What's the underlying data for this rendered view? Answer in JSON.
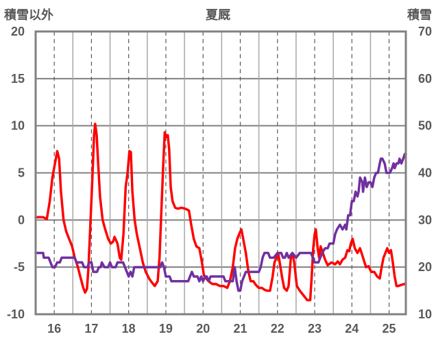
{
  "chart_data": {
    "type": "line",
    "title": "夏厩",
    "y_left_label": "積雪以外",
    "y_right_label": "積雪",
    "x_categories": [
      "16",
      "17",
      "18",
      "19",
      "20",
      "21",
      "22",
      "23",
      "24",
      "25"
    ],
    "xlim": [
      15.5,
      25.45
    ],
    "y_left_lim": [
      -10,
      20
    ],
    "y_left_ticks": [
      -10,
      -5,
      0,
      5,
      10,
      15,
      20
    ],
    "y_right_lim": [
      10,
      70
    ],
    "y_right_ticks": [
      10,
      20,
      30,
      40,
      50,
      60,
      70
    ],
    "grid": true,
    "legend": "none",
    "series": [
      {
        "axis": "left",
        "color": "#ff0000",
        "points": [
          [
            15.5,
            0.3
          ],
          [
            15.7,
            0.3
          ],
          [
            15.8,
            0.1
          ],
          [
            15.88,
            2.0
          ],
          [
            15.95,
            4.5
          ],
          [
            16.02,
            6.0
          ],
          [
            16.08,
            7.3
          ],
          [
            16.13,
            6.5
          ],
          [
            16.18,
            3.0
          ],
          [
            16.25,
            0.0
          ],
          [
            16.32,
            -1.2
          ],
          [
            16.4,
            -2.0
          ],
          [
            16.48,
            -2.8
          ],
          [
            16.55,
            -4.0
          ],
          [
            16.62,
            -4.8
          ],
          [
            16.7,
            -6.0
          ],
          [
            16.78,
            -7.2
          ],
          [
            16.83,
            -7.7
          ],
          [
            16.88,
            -7.3
          ],
          [
            16.92,
            -5.0
          ],
          [
            16.97,
            -0.5
          ],
          [
            17.02,
            4.0
          ],
          [
            17.07,
            9.0
          ],
          [
            17.1,
            10.2
          ],
          [
            17.14,
            9.0
          ],
          [
            17.18,
            6.0
          ],
          [
            17.23,
            2.5
          ],
          [
            17.3,
            0.0
          ],
          [
            17.37,
            -1.0
          ],
          [
            17.45,
            -2.0
          ],
          [
            17.52,
            -2.5
          ],
          [
            17.58,
            -2.3
          ],
          [
            17.62,
            -1.8
          ],
          [
            17.7,
            -2.5
          ],
          [
            17.76,
            -4.0
          ],
          [
            17.8,
            -4.2
          ],
          [
            17.86,
            -1.5
          ],
          [
            17.92,
            3.5
          ],
          [
            17.97,
            5.0
          ],
          [
            18.02,
            7.3
          ],
          [
            18.06,
            7.2
          ],
          [
            18.1,
            3.0
          ],
          [
            18.16,
            0.0
          ],
          [
            18.22,
            -1.5
          ],
          [
            18.3,
            -3.0
          ],
          [
            18.38,
            -4.5
          ],
          [
            18.46,
            -5.5
          ],
          [
            18.55,
            -6.2
          ],
          [
            18.62,
            -6.6
          ],
          [
            18.7,
            -7.0
          ],
          [
            18.78,
            -6.5
          ],
          [
            18.83,
            -4.0
          ],
          [
            18.88,
            1.0
          ],
          [
            18.93,
            6.0
          ],
          [
            18.97,
            9.3
          ],
          [
            19.01,
            8.8
          ],
          [
            19.05,
            9.0
          ],
          [
            19.09,
            7.5
          ],
          [
            19.13,
            3.5
          ],
          [
            19.18,
            2.0
          ],
          [
            19.25,
            1.3
          ],
          [
            19.32,
            1.2
          ],
          [
            19.42,
            1.3
          ],
          [
            19.52,
            1.2
          ],
          [
            19.62,
            1.0
          ],
          [
            19.68,
            -0.5
          ],
          [
            19.75,
            -2.0
          ],
          [
            19.82,
            -2.8
          ],
          [
            19.9,
            -3.0
          ],
          [
            19.97,
            -4.5
          ],
          [
            20.02,
            -5.8
          ],
          [
            20.08,
            -6.2
          ],
          [
            20.15,
            -6.5
          ],
          [
            20.25,
            -6.8
          ],
          [
            20.35,
            -6.8
          ],
          [
            20.45,
            -7.0
          ],
          [
            20.55,
            -7.0
          ],
          [
            20.65,
            -7.2
          ],
          [
            20.72,
            -6.5
          ],
          [
            20.8,
            -5.0
          ],
          [
            20.86,
            -3.0
          ],
          [
            20.92,
            -2.0
          ],
          [
            20.98,
            -1.4
          ],
          [
            21.03,
            -1.0
          ],
          [
            21.08,
            -2.0
          ],
          [
            21.15,
            -3.5
          ],
          [
            21.22,
            -5.5
          ],
          [
            21.28,
            -6.5
          ],
          [
            21.35,
            -6.5
          ],
          [
            21.42,
            -6.9
          ],
          [
            21.5,
            -7.2
          ],
          [
            21.58,
            -7.2
          ],
          [
            21.65,
            -7.4
          ],
          [
            21.72,
            -7.5
          ],
          [
            21.8,
            -7.5
          ],
          [
            21.87,
            -6.0
          ],
          [
            21.92,
            -4.5
          ],
          [
            21.97,
            -4.0
          ],
          [
            22.02,
            -3.5
          ],
          [
            22.06,
            -4.5
          ],
          [
            22.12,
            -6.0
          ],
          [
            22.18,
            -7.2
          ],
          [
            22.25,
            -7.5
          ],
          [
            22.3,
            -7.0
          ],
          [
            22.36,
            -4.0
          ],
          [
            22.4,
            -3.5
          ],
          [
            22.45,
            -4.5
          ],
          [
            22.52,
            -7.0
          ],
          [
            22.6,
            -7.5
          ],
          [
            22.7,
            -8.0
          ],
          [
            22.8,
            -8.5
          ],
          [
            22.88,
            -8.5
          ],
          [
            22.92,
            -6.0
          ],
          [
            22.96,
            -3.0
          ],
          [
            23.0,
            -1.5
          ],
          [
            23.03,
            -1.0
          ],
          [
            23.08,
            -3.0
          ],
          [
            23.12,
            -4.0
          ],
          [
            23.16,
            -2.8
          ],
          [
            23.22,
            -3.5
          ],
          [
            23.28,
            -4.2
          ],
          [
            23.35,
            -4.8
          ],
          [
            23.45,
            -4.5
          ],
          [
            23.55,
            -4.7
          ],
          [
            23.62,
            -4.4
          ],
          [
            23.68,
            -4.7
          ],
          [
            23.75,
            -4.2
          ],
          [
            23.82,
            -4.0
          ],
          [
            23.88,
            -3.2
          ],
          [
            23.93,
            -3.3
          ],
          [
            23.97,
            -2.5
          ],
          [
            24.02,
            -2.0
          ],
          [
            24.08,
            -3.0
          ],
          [
            24.15,
            -3.5
          ],
          [
            24.22,
            -3.0
          ],
          [
            24.3,
            -4.0
          ],
          [
            24.38,
            -5.0
          ],
          [
            24.45,
            -4.9
          ],
          [
            24.52,
            -5.5
          ],
          [
            24.6,
            -5.5
          ],
          [
            24.68,
            -6.0
          ],
          [
            24.75,
            -6.2
          ],
          [
            24.8,
            -5.0
          ],
          [
            24.85,
            -4.0
          ],
          [
            24.9,
            -3.5
          ],
          [
            24.95,
            -3.0
          ],
          [
            25.0,
            -3.5
          ],
          [
            25.05,
            -3.2
          ],
          [
            25.1,
            -4.5
          ],
          [
            25.15,
            -6.0
          ],
          [
            25.2,
            -7.0
          ],
          [
            25.25,
            -7.0
          ],
          [
            25.32,
            -6.9
          ],
          [
            25.4,
            -6.8
          ],
          [
            25.45,
            -6.8
          ]
        ]
      },
      {
        "axis": "right",
        "color": "#7030a0",
        "points": [
          [
            15.5,
            23.0
          ],
          [
            15.7,
            23.0
          ],
          [
            15.72,
            22.0
          ],
          [
            15.85,
            22.0
          ],
          [
            15.9,
            21.0
          ],
          [
            15.95,
            20.0
          ],
          [
            16.02,
            20.0
          ],
          [
            16.08,
            21.0
          ],
          [
            16.15,
            21.0
          ],
          [
            16.2,
            22.0
          ],
          [
            16.55,
            22.0
          ],
          [
            16.6,
            21.0
          ],
          [
            16.75,
            21.0
          ],
          [
            16.8,
            20.0
          ],
          [
            16.9,
            20.0
          ],
          [
            16.93,
            21.0
          ],
          [
            17.0,
            21.0
          ],
          [
            17.05,
            19.0
          ],
          [
            17.15,
            19.0
          ],
          [
            17.2,
            20.0
          ],
          [
            17.25,
            20.0
          ],
          [
            17.28,
            21.0
          ],
          [
            17.35,
            20.0
          ],
          [
            17.45,
            20.0
          ],
          [
            17.5,
            21.0
          ],
          [
            17.55,
            20.0
          ],
          [
            17.65,
            20.0
          ],
          [
            17.7,
            21.0
          ],
          [
            17.85,
            21.0
          ],
          [
            17.9,
            20.0
          ],
          [
            18.0,
            18.0
          ],
          [
            18.05,
            19.0
          ],
          [
            18.1,
            18.0
          ],
          [
            18.15,
            20.0
          ],
          [
            18.85,
            20.0
          ],
          [
            18.9,
            21.0
          ],
          [
            18.95,
            20.0
          ],
          [
            19.0,
            18.0
          ],
          [
            19.1,
            18.0
          ],
          [
            19.15,
            17.0
          ],
          [
            19.6,
            17.0
          ],
          [
            19.65,
            18.0
          ],
          [
            19.7,
            19.0
          ],
          [
            19.75,
            18.0
          ],
          [
            19.85,
            18.0
          ],
          [
            19.9,
            17.0
          ],
          [
            19.95,
            18.0
          ],
          [
            20.0,
            17.0
          ],
          [
            20.05,
            18.0
          ],
          [
            20.1,
            18.0
          ],
          [
            20.15,
            17.0
          ],
          [
            20.2,
            18.0
          ],
          [
            20.55,
            18.0
          ],
          [
            20.6,
            17.0
          ],
          [
            20.8,
            17.0
          ],
          [
            20.85,
            20.0
          ],
          [
            20.9,
            17.0
          ],
          [
            20.95,
            15.0
          ],
          [
            21.0,
            15.0
          ],
          [
            21.05,
            17.0
          ],
          [
            21.1,
            18.0
          ],
          [
            21.15,
            19.0
          ],
          [
            21.3,
            19.0
          ],
          [
            21.4,
            19.0
          ],
          [
            21.45,
            19.0
          ],
          [
            21.5,
            19.0
          ],
          [
            21.55,
            20.0
          ],
          [
            21.6,
            22.0
          ],
          [
            21.65,
            23.0
          ],
          [
            21.7,
            23.0
          ],
          [
            21.75,
            23.0
          ],
          [
            21.8,
            22.0
          ],
          [
            21.9,
            22.0
          ],
          [
            22.0,
            23.0
          ],
          [
            22.1,
            23.0
          ],
          [
            22.15,
            22.0
          ],
          [
            22.2,
            22.0
          ],
          [
            22.25,
            23.0
          ],
          [
            22.3,
            22.0
          ],
          [
            22.4,
            23.0
          ],
          [
            22.5,
            22.0
          ],
          [
            22.6,
            23.0
          ],
          [
            22.7,
            23.0
          ],
          [
            22.8,
            23.0
          ],
          [
            22.9,
            23.0
          ],
          [
            22.95,
            22.0
          ],
          [
            23.0,
            21.0
          ],
          [
            23.05,
            21.0
          ],
          [
            23.1,
            21.0
          ],
          [
            23.15,
            22.0
          ],
          [
            23.2,
            23.0
          ],
          [
            23.28,
            24.0
          ],
          [
            23.35,
            24.0
          ],
          [
            23.4,
            25.0
          ],
          [
            23.5,
            25.0
          ],
          [
            23.55,
            27.0
          ],
          [
            23.6,
            28.0
          ],
          [
            23.68,
            29.0
          ],
          [
            23.75,
            28.0
          ],
          [
            23.82,
            29.0
          ],
          [
            23.85,
            28.0
          ],
          [
            23.9,
            31.0
          ],
          [
            23.95,
            31.0
          ],
          [
            24.0,
            34.0
          ],
          [
            24.05,
            34.0
          ],
          [
            24.1,
            36.0
          ],
          [
            24.15,
            35.0
          ],
          [
            24.18,
            36.0
          ],
          [
            24.22,
            39.0
          ],
          [
            24.28,
            38.0
          ],
          [
            24.3,
            36.0
          ],
          [
            24.35,
            39.0
          ],
          [
            24.4,
            37.0
          ],
          [
            24.45,
            38.0
          ],
          [
            24.5,
            38.0
          ],
          [
            24.55,
            37.0
          ],
          [
            24.6,
            39.0
          ],
          [
            24.65,
            40.0
          ],
          [
            24.7,
            40.0
          ],
          [
            24.75,
            42.0
          ],
          [
            24.78,
            43.0
          ],
          [
            24.82,
            43.0
          ],
          [
            24.88,
            42.0
          ],
          [
            24.93,
            40.0
          ],
          [
            24.97,
            40.0
          ],
          [
            25.02,
            40.0
          ],
          [
            25.08,
            41.0
          ],
          [
            25.12,
            42.0
          ],
          [
            25.15,
            41.0
          ],
          [
            25.2,
            42.0
          ],
          [
            25.25,
            42.0
          ],
          [
            25.28,
            43.0
          ],
          [
            25.33,
            42.0
          ],
          [
            25.38,
            43.0
          ],
          [
            25.42,
            44.0
          ],
          [
            25.45,
            44.0
          ]
        ]
      }
    ]
  }
}
